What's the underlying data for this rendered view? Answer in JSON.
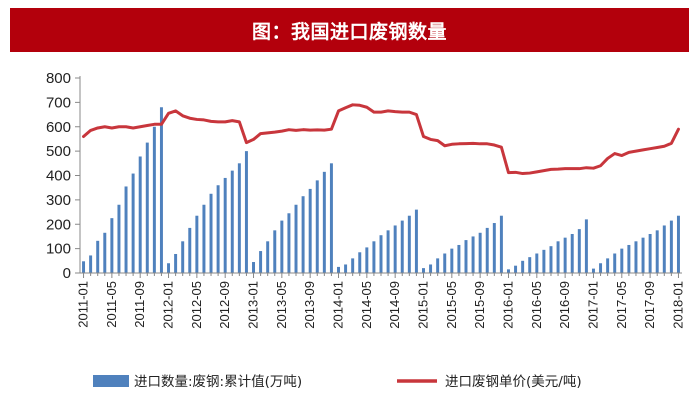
{
  "chart_data": {
    "type": "bar",
    "title": "图：我国进口废钢数量",
    "xlabel": "",
    "ylabel": "",
    "ylim": [
      0,
      800
    ],
    "yticks": [
      0,
      100,
      200,
      300,
      400,
      500,
      600,
      700,
      800
    ],
    "x_tick_labels": [
      "2011-01",
      "2011-05",
      "2011-09",
      "2012-01",
      "2012-05",
      "2012-09",
      "2013-01",
      "2013-05",
      "2013-09",
      "2014-01",
      "2014-05",
      "2014-09",
      "2015-01",
      "2015-05",
      "2015-09",
      "2016-01",
      "2016-05",
      "2016-09",
      "2017-01",
      "2017-05",
      "2017-09",
      "2018-01"
    ],
    "x_tick_every": 4,
    "start_year": 2011,
    "start_month": 1,
    "grid": false,
    "legend_position": "bottom",
    "series": [
      {
        "name": "进口数量:废钢:累计值(万吨)",
        "type": "bar",
        "color": "#4f81bd",
        "values": [
          48,
          72,
          132,
          165,
          225,
          280,
          355,
          408,
          478,
          535,
          600,
          680,
          40,
          78,
          130,
          185,
          235,
          280,
          325,
          360,
          390,
          420,
          450,
          500,
          45,
          90,
          130,
          175,
          215,
          245,
          280,
          315,
          345,
          380,
          415,
          450,
          25,
          35,
          60,
          85,
          105,
          130,
          155,
          175,
          195,
          215,
          235,
          260,
          20,
          35,
          60,
          80,
          100,
          115,
          135,
          150,
          165,
          185,
          205,
          235,
          15,
          30,
          50,
          65,
          80,
          95,
          110,
          130,
          145,
          160,
          180,
          220,
          18,
          40,
          60,
          80,
          100,
          115,
          130,
          145,
          160,
          175,
          195,
          215,
          235
        ]
      },
      {
        "name": "进口废钢单价(美元/吨)",
        "type": "line",
        "color": "#c8363c",
        "values": [
          560,
          585,
          595,
          600,
          595,
          600,
          600,
          595,
          600,
          605,
          610,
          610,
          655,
          665,
          645,
          635,
          630,
          628,
          622,
          620,
          620,
          625,
          620,
          535,
          548,
          572,
          575,
          578,
          582,
          588,
          585,
          588,
          586,
          587,
          586,
          590,
          665,
          678,
          690,
          688,
          680,
          660,
          660,
          665,
          662,
          660,
          660,
          650,
          560,
          548,
          543,
          522,
          528,
          530,
          531,
          532,
          530,
          530,
          525,
          516,
          412,
          413,
          408,
          410,
          415,
          420,
          425,
          426,
          428,
          428,
          428,
          432,
          430,
          440,
          470,
          490,
          482,
          495,
          500,
          505,
          510,
          515,
          520,
          532,
          590
        ]
      }
    ]
  }
}
